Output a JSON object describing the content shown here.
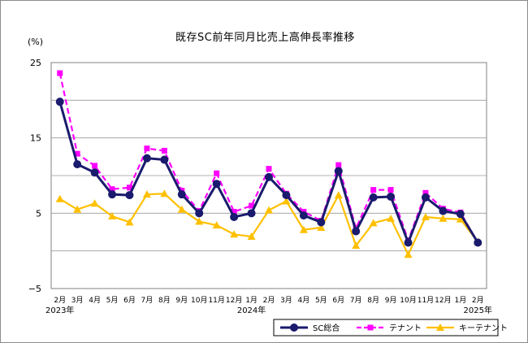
{
  "chart_data": {
    "type": "line",
    "title": "既存SC前年同月比売上高伸長率推移",
    "ylabel": "(%)",
    "ylim": [
      -5,
      25
    ],
    "yticks": [
      -5,
      5,
      15,
      25
    ],
    "categories": [
      "2月",
      "3月",
      "4月",
      "5月",
      "6月",
      "7月",
      "8月",
      "9月",
      "10月",
      "11月",
      "12月",
      "1月",
      "2月",
      "3月",
      "4月",
      "5月",
      "6月",
      "7月",
      "8月",
      "9月",
      "10月",
      "11月",
      "12月",
      "1月",
      "2月"
    ],
    "year_labels": [
      {
        "index": 0,
        "label": "2023年"
      },
      {
        "index": 11,
        "label": "2024年"
      },
      {
        "index": 24,
        "label": "2025年"
      }
    ],
    "grid": "horizontal",
    "legend_position": "bottom-right",
    "series": [
      {
        "name": "SC総合",
        "color": "#1a1a6e",
        "marker": "circle",
        "dashed": false,
        "values": [
          19.8,
          11.5,
          10.4,
          7.5,
          7.4,
          12.3,
          12.1,
          7.5,
          5.0,
          8.9,
          4.5,
          5.0,
          9.8,
          7.4,
          4.7,
          3.8,
          10.6,
          2.6,
          7.1,
          7.2,
          1.1,
          7.1,
          5.3,
          4.9,
          1.1
        ]
      },
      {
        "name": "テナント",
        "color": "#ff00ff",
        "marker": "square",
        "dashed": true,
        "values": [
          23.6,
          12.9,
          11.3,
          8.2,
          8.4,
          13.6,
          13.3,
          8.0,
          5.3,
          10.3,
          5.2,
          6.0,
          10.9,
          7.6,
          5.2,
          4.0,
          11.4,
          3.0,
          8.1,
          8.1,
          1.4,
          7.7,
          5.6,
          5.1,
          1.1
        ]
      },
      {
        "name": "キーテナント",
        "color": "#ffc000",
        "marker": "triangle",
        "dashed": false,
        "values": [
          6.9,
          5.5,
          6.3,
          4.6,
          3.8,
          7.5,
          7.6,
          5.5,
          3.9,
          3.4,
          2.2,
          1.9,
          5.4,
          6.6,
          2.8,
          3.1,
          7.4,
          0.7,
          3.7,
          4.3,
          -0.5,
          4.5,
          4.3,
          4.2,
          1.2
        ]
      }
    ]
  }
}
